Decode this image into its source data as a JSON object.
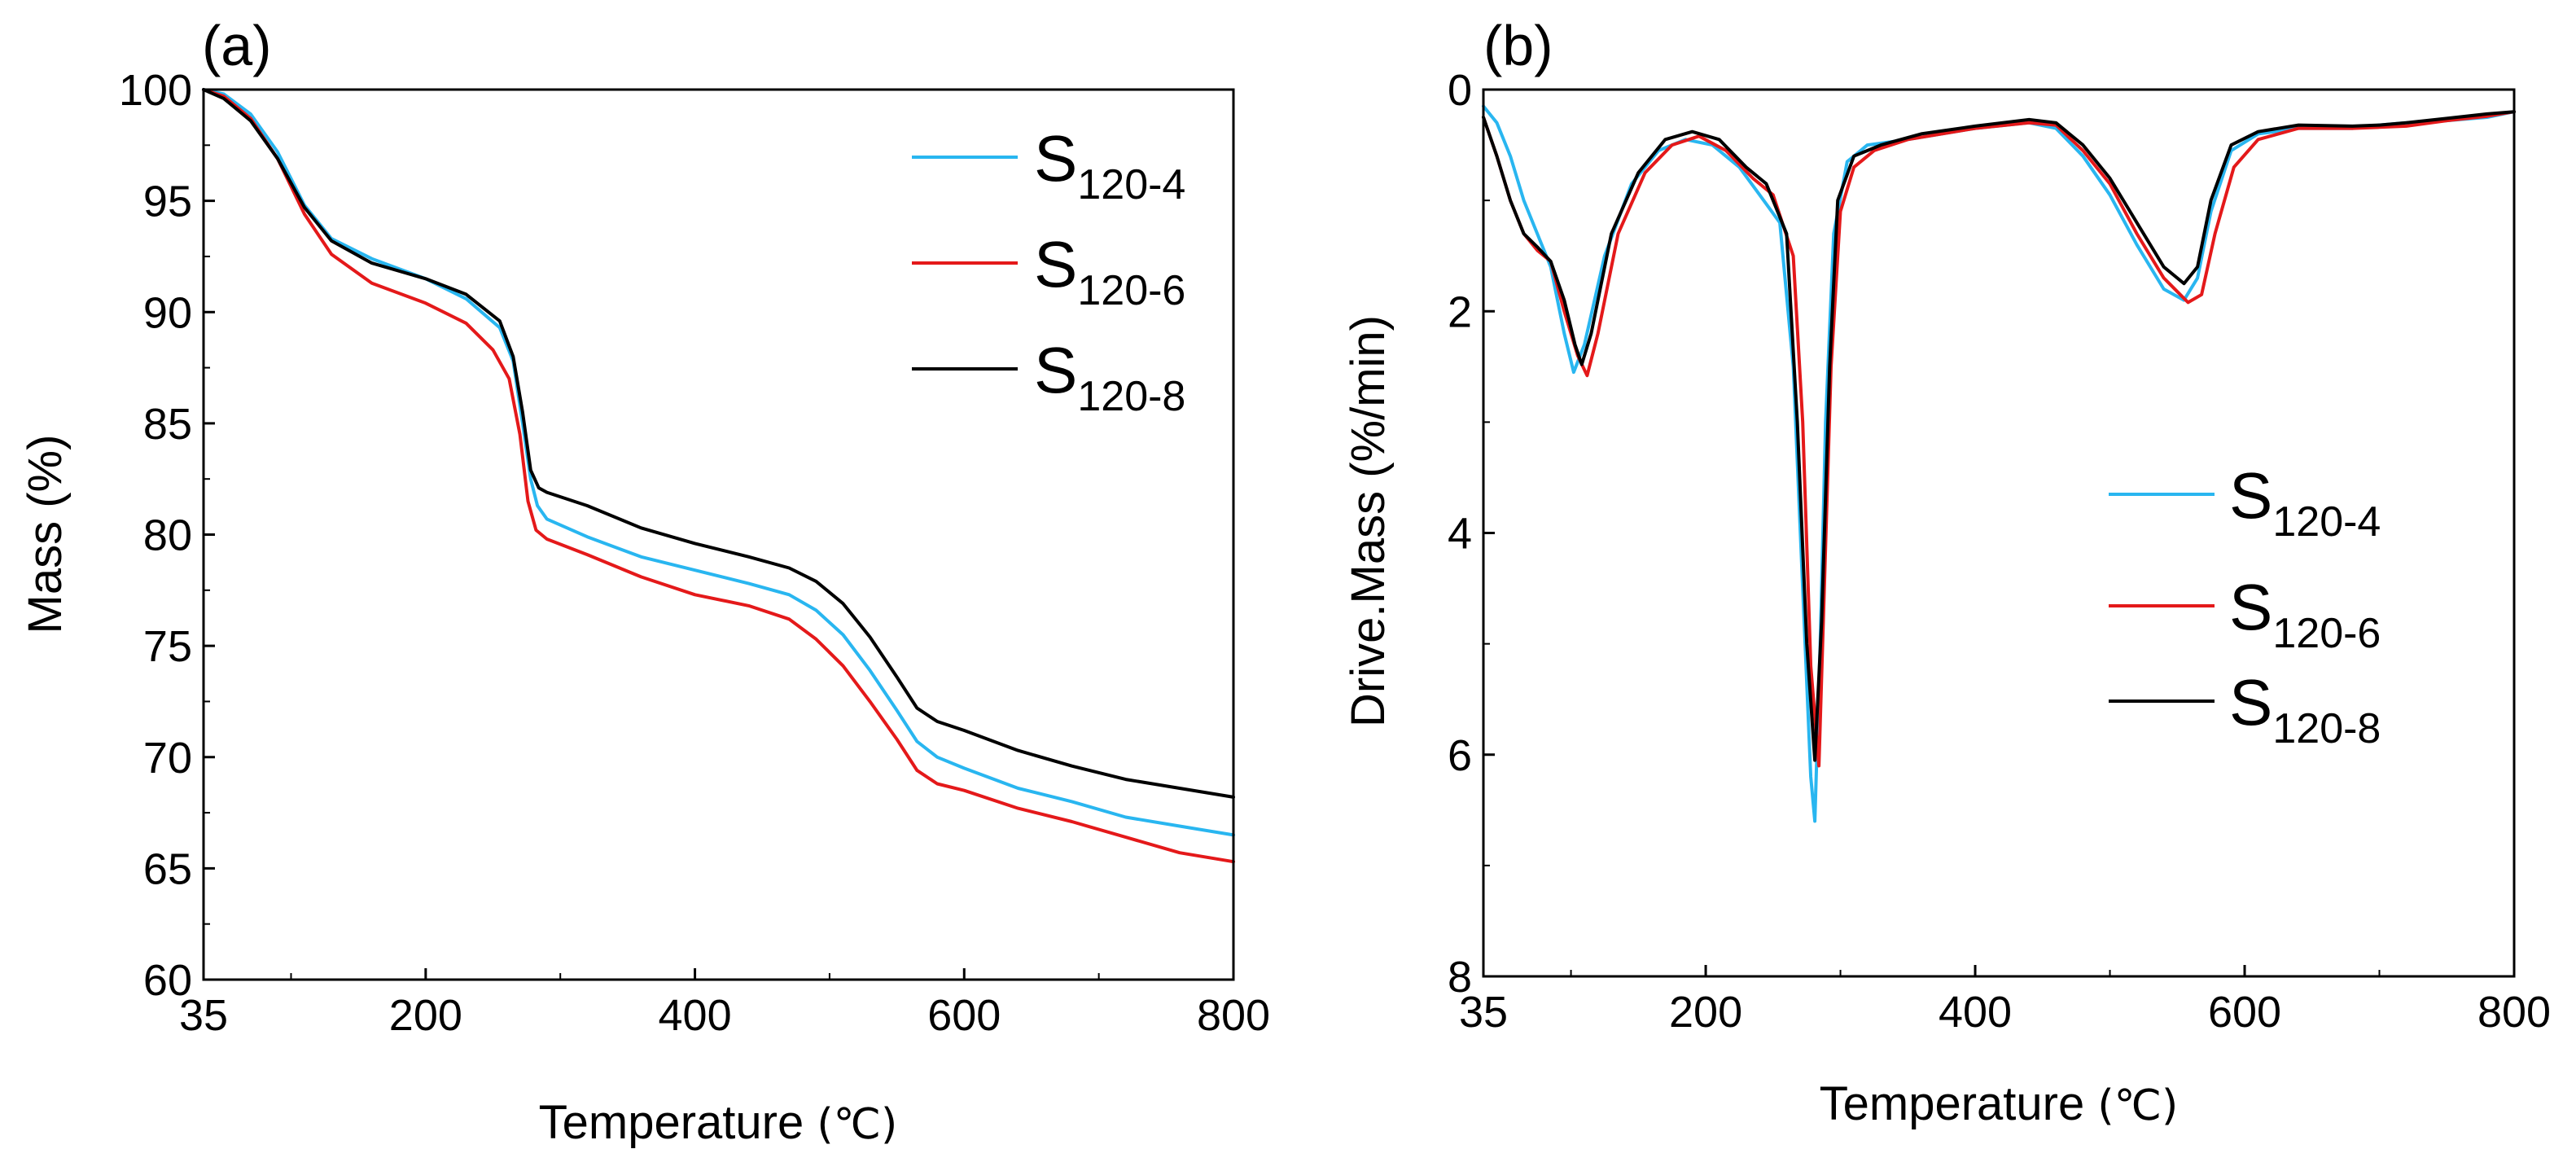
{
  "chart_data": [
    {
      "id": "a",
      "type": "line",
      "panel_label": "(a)",
      "xlabel": "Temperature",
      "xlabel_unit": "(℃)",
      "ylabel": "Mass (%)",
      "xlim": [
        35,
        800
      ],
      "ylim": [
        60,
        100
      ],
      "y_inverted": false,
      "x_ticks": [
        35,
        200,
        400,
        600,
        800
      ],
      "y_ticks": [
        60,
        65,
        70,
        75,
        80,
        85,
        90,
        95,
        100
      ],
      "legend_position": "top-right",
      "series": [
        {
          "name": "S120-4",
          "name_main": "S",
          "name_sub": "120-4",
          "color": "#29b6f0",
          "points": [
            [
              35,
              100
            ],
            [
              50,
              99.8
            ],
            [
              70,
              98.9
            ],
            [
              90,
              97.2
            ],
            [
              110,
              94.8
            ],
            [
              130,
              93.3
            ],
            [
              160,
              92.4
            ],
            [
              200,
              91.5
            ],
            [
              230,
              90.6
            ],
            [
              255,
              89.3
            ],
            [
              265,
              87.8
            ],
            [
              272,
              85
            ],
            [
              278,
              82.5
            ],
            [
              283,
              81.3
            ],
            [
              290,
              80.7
            ],
            [
              320,
              79.9
            ],
            [
              360,
              79
            ],
            [
              400,
              78.4
            ],
            [
              440,
              77.8
            ],
            [
              470,
              77.3
            ],
            [
              490,
              76.6
            ],
            [
              510,
              75.5
            ],
            [
              530,
              73.9
            ],
            [
              550,
              72.1
            ],
            [
              565,
              70.7
            ],
            [
              580,
              70
            ],
            [
              600,
              69.5
            ],
            [
              640,
              68.6
            ],
            [
              680,
              68
            ],
            [
              720,
              67.3
            ],
            [
              760,
              66.9
            ],
            [
              800,
              66.5
            ]
          ]
        },
        {
          "name": "S120-6",
          "name_main": "S",
          "name_sub": "120-6",
          "color": "#e4191a",
          "points": [
            [
              35,
              100
            ],
            [
              50,
              99.7
            ],
            [
              70,
              98.7
            ],
            [
              90,
              96.9
            ],
            [
              110,
              94.4
            ],
            [
              130,
              92.6
            ],
            [
              160,
              91.3
            ],
            [
              200,
              90.4
            ],
            [
              230,
              89.5
            ],
            [
              250,
              88.3
            ],
            [
              262,
              87
            ],
            [
              270,
              84.5
            ],
            [
              276,
              81.5
            ],
            [
              282,
              80.2
            ],
            [
              290,
              79.8
            ],
            [
              320,
              79.1
            ],
            [
              360,
              78.1
            ],
            [
              400,
              77.3
            ],
            [
              440,
              76.8
            ],
            [
              470,
              76.2
            ],
            [
              490,
              75.3
            ],
            [
              510,
              74.1
            ],
            [
              530,
              72.5
            ],
            [
              550,
              70.8
            ],
            [
              565,
              69.4
            ],
            [
              580,
              68.8
            ],
            [
              600,
              68.5
            ],
            [
              640,
              67.7
            ],
            [
              680,
              67.1
            ],
            [
              720,
              66.4
            ],
            [
              760,
              65.7
            ],
            [
              800,
              65.3
            ]
          ]
        },
        {
          "name": "S120-8",
          "name_main": "S",
          "name_sub": "120-8",
          "color": "#000000",
          "points": [
            [
              35,
              100
            ],
            [
              50,
              99.6
            ],
            [
              70,
              98.6
            ],
            [
              90,
              96.9
            ],
            [
              110,
              94.7
            ],
            [
              130,
              93.2
            ],
            [
              160,
              92.2
            ],
            [
              200,
              91.5
            ],
            [
              230,
              90.8
            ],
            [
              255,
              89.6
            ],
            [
              265,
              88
            ],
            [
              272,
              85.5
            ],
            [
              278,
              82.9
            ],
            [
              284,
              82.1
            ],
            [
              290,
              81.9
            ],
            [
              320,
              81.3
            ],
            [
              360,
              80.3
            ],
            [
              400,
              79.6
            ],
            [
              440,
              79
            ],
            [
              470,
              78.5
            ],
            [
              490,
              77.9
            ],
            [
              510,
              76.9
            ],
            [
              530,
              75.4
            ],
            [
              550,
              73.6
            ],
            [
              565,
              72.2
            ],
            [
              580,
              71.6
            ],
            [
              600,
              71.2
            ],
            [
              640,
              70.3
            ],
            [
              680,
              69.6
            ],
            [
              720,
              69
            ],
            [
              760,
              68.6
            ],
            [
              800,
              68.2
            ]
          ]
        }
      ]
    },
    {
      "id": "b",
      "type": "line",
      "panel_label": "(b)",
      "xlabel": "Temperature",
      "xlabel_unit": "(℃)",
      "ylabel": "Drive.Mass (%/min)",
      "xlim": [
        35,
        800
      ],
      "ylim": [
        0,
        8
      ],
      "y_inverted": true,
      "x_ticks": [
        35,
        200,
        400,
        600,
        800
      ],
      "y_ticks": [
        0,
        2,
        4,
        6,
        8
      ],
      "legend_position": "center-right",
      "series": [
        {
          "name": "S120-4",
          "name_main": "S",
          "name_sub": "120-4",
          "color": "#29b6f0",
          "points": [
            [
              35,
              0.15
            ],
            [
              45,
              0.3
            ],
            [
              55,
              0.6
            ],
            [
              65,
              1
            ],
            [
              75,
              1.3
            ],
            [
              85,
              1.6
            ],
            [
              95,
              2.2
            ],
            [
              102,
              2.55
            ],
            [
              110,
              2.3
            ],
            [
              125,
              1.5
            ],
            [
              145,
              0.85
            ],
            [
              165,
              0.55
            ],
            [
              185,
              0.45
            ],
            [
              205,
              0.5
            ],
            [
              225,
              0.7
            ],
            [
              240,
              0.95
            ],
            [
              255,
              1.2
            ],
            [
              265,
              2.5
            ],
            [
              272,
              4.5
            ],
            [
              278,
              6.2
            ],
            [
              281,
              6.6
            ],
            [
              285,
              5
            ],
            [
              289,
              3
            ],
            [
              295,
              1.3
            ],
            [
              305,
              0.65
            ],
            [
              320,
              0.5
            ],
            [
              350,
              0.45
            ],
            [
              400,
              0.35
            ],
            [
              440,
              0.3
            ],
            [
              460,
              0.35
            ],
            [
              480,
              0.6
            ],
            [
              500,
              0.95
            ],
            [
              520,
              1.4
            ],
            [
              540,
              1.8
            ],
            [
              555,
              1.9
            ],
            [
              565,
              1.7
            ],
            [
              575,
              1.1
            ],
            [
              590,
              0.55
            ],
            [
              610,
              0.4
            ],
            [
              640,
              0.35
            ],
            [
              680,
              0.35
            ],
            [
              700,
              0.32
            ],
            [
              720,
              0.3
            ],
            [
              750,
              0.28
            ],
            [
              780,
              0.25
            ],
            [
              800,
              0.2
            ]
          ]
        },
        {
          "name": "S120-6",
          "name_main": "S",
          "name_sub": "120-6",
          "color": "#e4191a",
          "points": [
            [
              35,
              0.25
            ],
            [
              45,
              0.6
            ],
            [
              55,
              1
            ],
            [
              65,
              1.3
            ],
            [
              75,
              1.45
            ],
            [
              85,
              1.55
            ],
            [
              95,
              2
            ],
            [
              105,
              2.4
            ],
            [
              112,
              2.58
            ],
            [
              120,
              2.2
            ],
            [
              135,
              1.3
            ],
            [
              155,
              0.75
            ],
            [
              175,
              0.5
            ],
            [
              195,
              0.42
            ],
            [
              215,
              0.55
            ],
            [
              235,
              0.8
            ],
            [
              250,
              0.95
            ],
            [
              265,
              1.5
            ],
            [
              272,
              3
            ],
            [
              278,
              5.2
            ],
            [
              284,
              6.1
            ],
            [
              288,
              4.5
            ],
            [
              293,
              2.5
            ],
            [
              300,
              1.1
            ],
            [
              310,
              0.7
            ],
            [
              325,
              0.55
            ],
            [
              350,
              0.45
            ],
            [
              400,
              0.35
            ],
            [
              440,
              0.3
            ],
            [
              460,
              0.32
            ],
            [
              480,
              0.55
            ],
            [
              500,
              0.85
            ],
            [
              520,
              1.3
            ],
            [
              540,
              1.7
            ],
            [
              558,
              1.92
            ],
            [
              568,
              1.85
            ],
            [
              578,
              1.3
            ],
            [
              592,
              0.7
            ],
            [
              610,
              0.45
            ],
            [
              640,
              0.35
            ],
            [
              680,
              0.35
            ],
            [
              700,
              0.34
            ],
            [
              720,
              0.33
            ],
            [
              750,
              0.28
            ],
            [
              780,
              0.24
            ],
            [
              800,
              0.2
            ]
          ]
        },
        {
          "name": "S120-8",
          "name_main": "S",
          "name_sub": "120-8",
          "color": "#000000",
          "points": [
            [
              35,
              0.25
            ],
            [
              45,
              0.6
            ],
            [
              55,
              1
            ],
            [
              65,
              1.3
            ],
            [
              75,
              1.42
            ],
            [
              85,
              1.55
            ],
            [
              95,
              1.9
            ],
            [
              103,
              2.3
            ],
            [
              108,
              2.48
            ],
            [
              115,
              2.2
            ],
            [
              130,
              1.3
            ],
            [
              150,
              0.75
            ],
            [
              170,
              0.45
            ],
            [
              190,
              0.38
            ],
            [
              210,
              0.45
            ],
            [
              230,
              0.7
            ],
            [
              245,
              0.85
            ],
            [
              260,
              1.3
            ],
            [
              268,
              3
            ],
            [
              275,
              5
            ],
            [
              281,
              6.05
            ],
            [
              286,
              4.8
            ],
            [
              292,
              2.5
            ],
            [
              298,
              1
            ],
            [
              310,
              0.6
            ],
            [
              330,
              0.5
            ],
            [
              360,
              0.4
            ],
            [
              400,
              0.33
            ],
            [
              440,
              0.27
            ],
            [
              460,
              0.3
            ],
            [
              480,
              0.5
            ],
            [
              500,
              0.8
            ],
            [
              520,
              1.2
            ],
            [
              540,
              1.6
            ],
            [
              555,
              1.75
            ],
            [
              565,
              1.6
            ],
            [
              575,
              1
            ],
            [
              590,
              0.5
            ],
            [
              610,
              0.38
            ],
            [
              640,
              0.32
            ],
            [
              680,
              0.33
            ],
            [
              700,
              0.32
            ],
            [
              720,
              0.3
            ],
            [
              750,
              0.26
            ],
            [
              780,
              0.22
            ],
            [
              800,
              0.2
            ]
          ]
        }
      ]
    }
  ]
}
